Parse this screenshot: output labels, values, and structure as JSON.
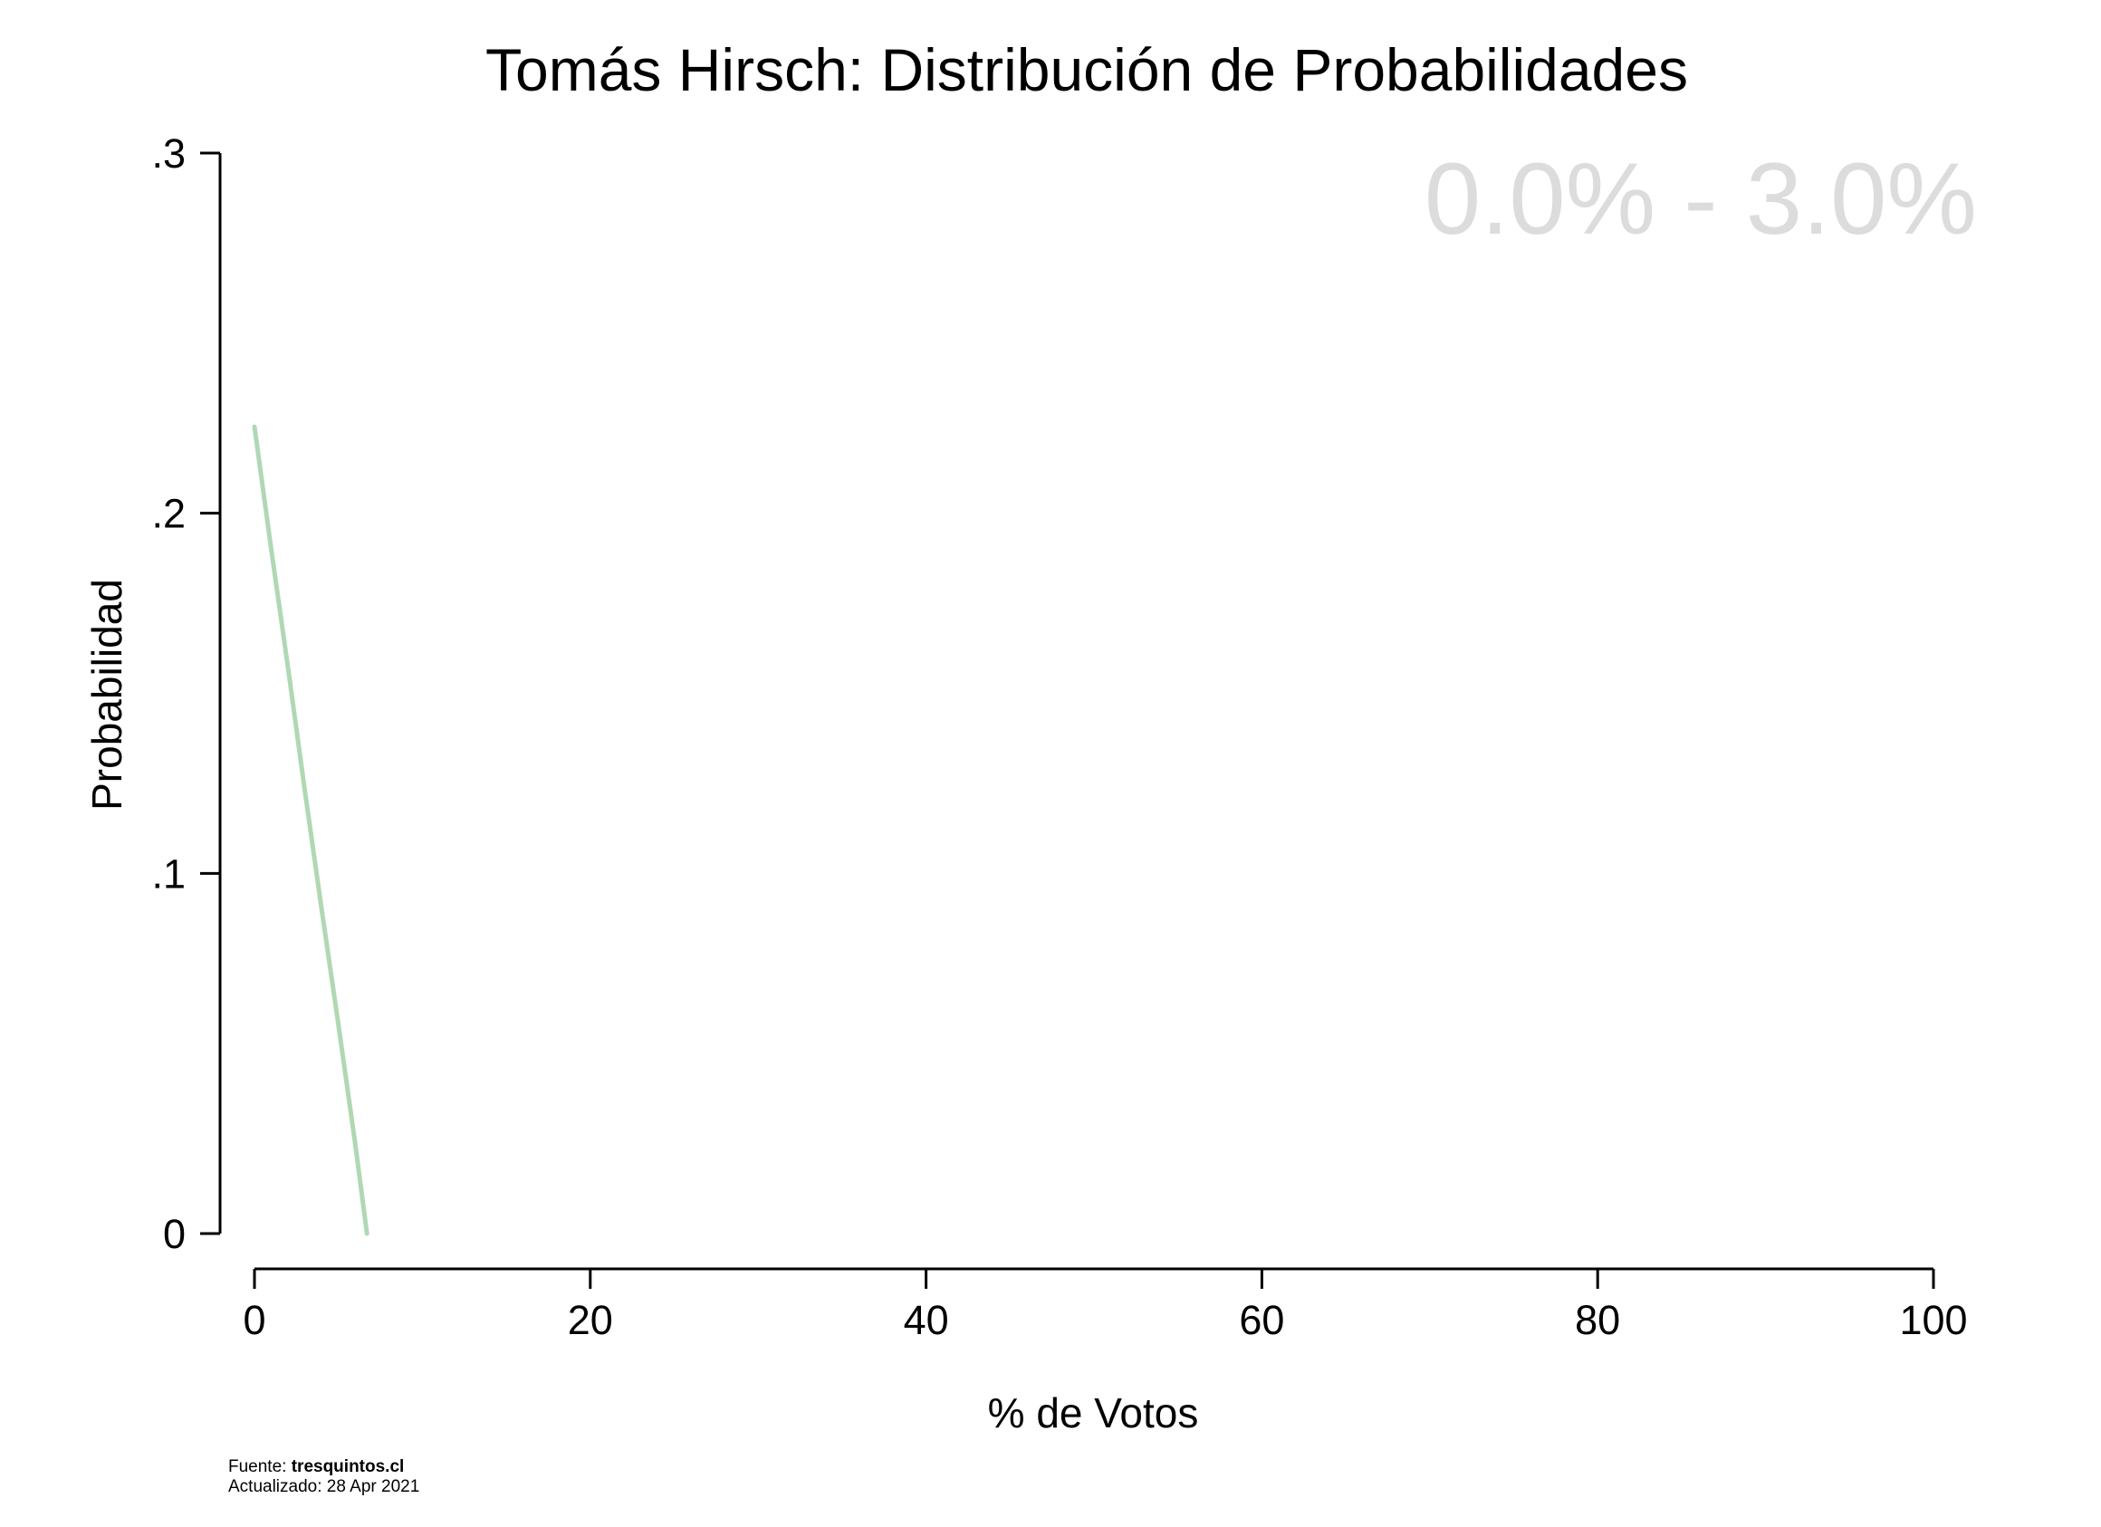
{
  "title": "Tomás Hirsch: Distribución de Probabilidades",
  "range_label": "0.0% - 3.0%",
  "colors": {
    "line": "#b0d8b3",
    "range_label": "#dcdcdc",
    "axis": "#000000"
  },
  "footer": {
    "source_prefix": "Fuente: ",
    "source_site": "tresquintos.cl",
    "updated": "Actualizado: 28 Apr 2021"
  },
  "chart_data": {
    "type": "line",
    "title": "Tomás Hirsch: Distribución de Probabilidades",
    "xlabel": "% de Votos",
    "ylabel": "Probabilidad",
    "xlim": [
      0,
      100
    ],
    "ylim": [
      0,
      0.3
    ],
    "x_ticks": [
      0,
      20,
      40,
      60,
      80,
      100
    ],
    "x_tick_labels": [
      "0",
      "20",
      "40",
      "60",
      "80",
      "100"
    ],
    "y_ticks": [
      0,
      0.1,
      0.2,
      0.3
    ],
    "y_tick_labels": [
      "0",
      ".1",
      ".2",
      ".3"
    ],
    "grid": false,
    "series": [
      {
        "x": [
          0,
          1,
          2,
          3,
          4,
          5,
          6,
          6.7
        ],
        "y": [
          0.224,
          0.19,
          0.157,
          0.123,
          0.09,
          0.058,
          0.025,
          0
        ]
      }
    ]
  }
}
